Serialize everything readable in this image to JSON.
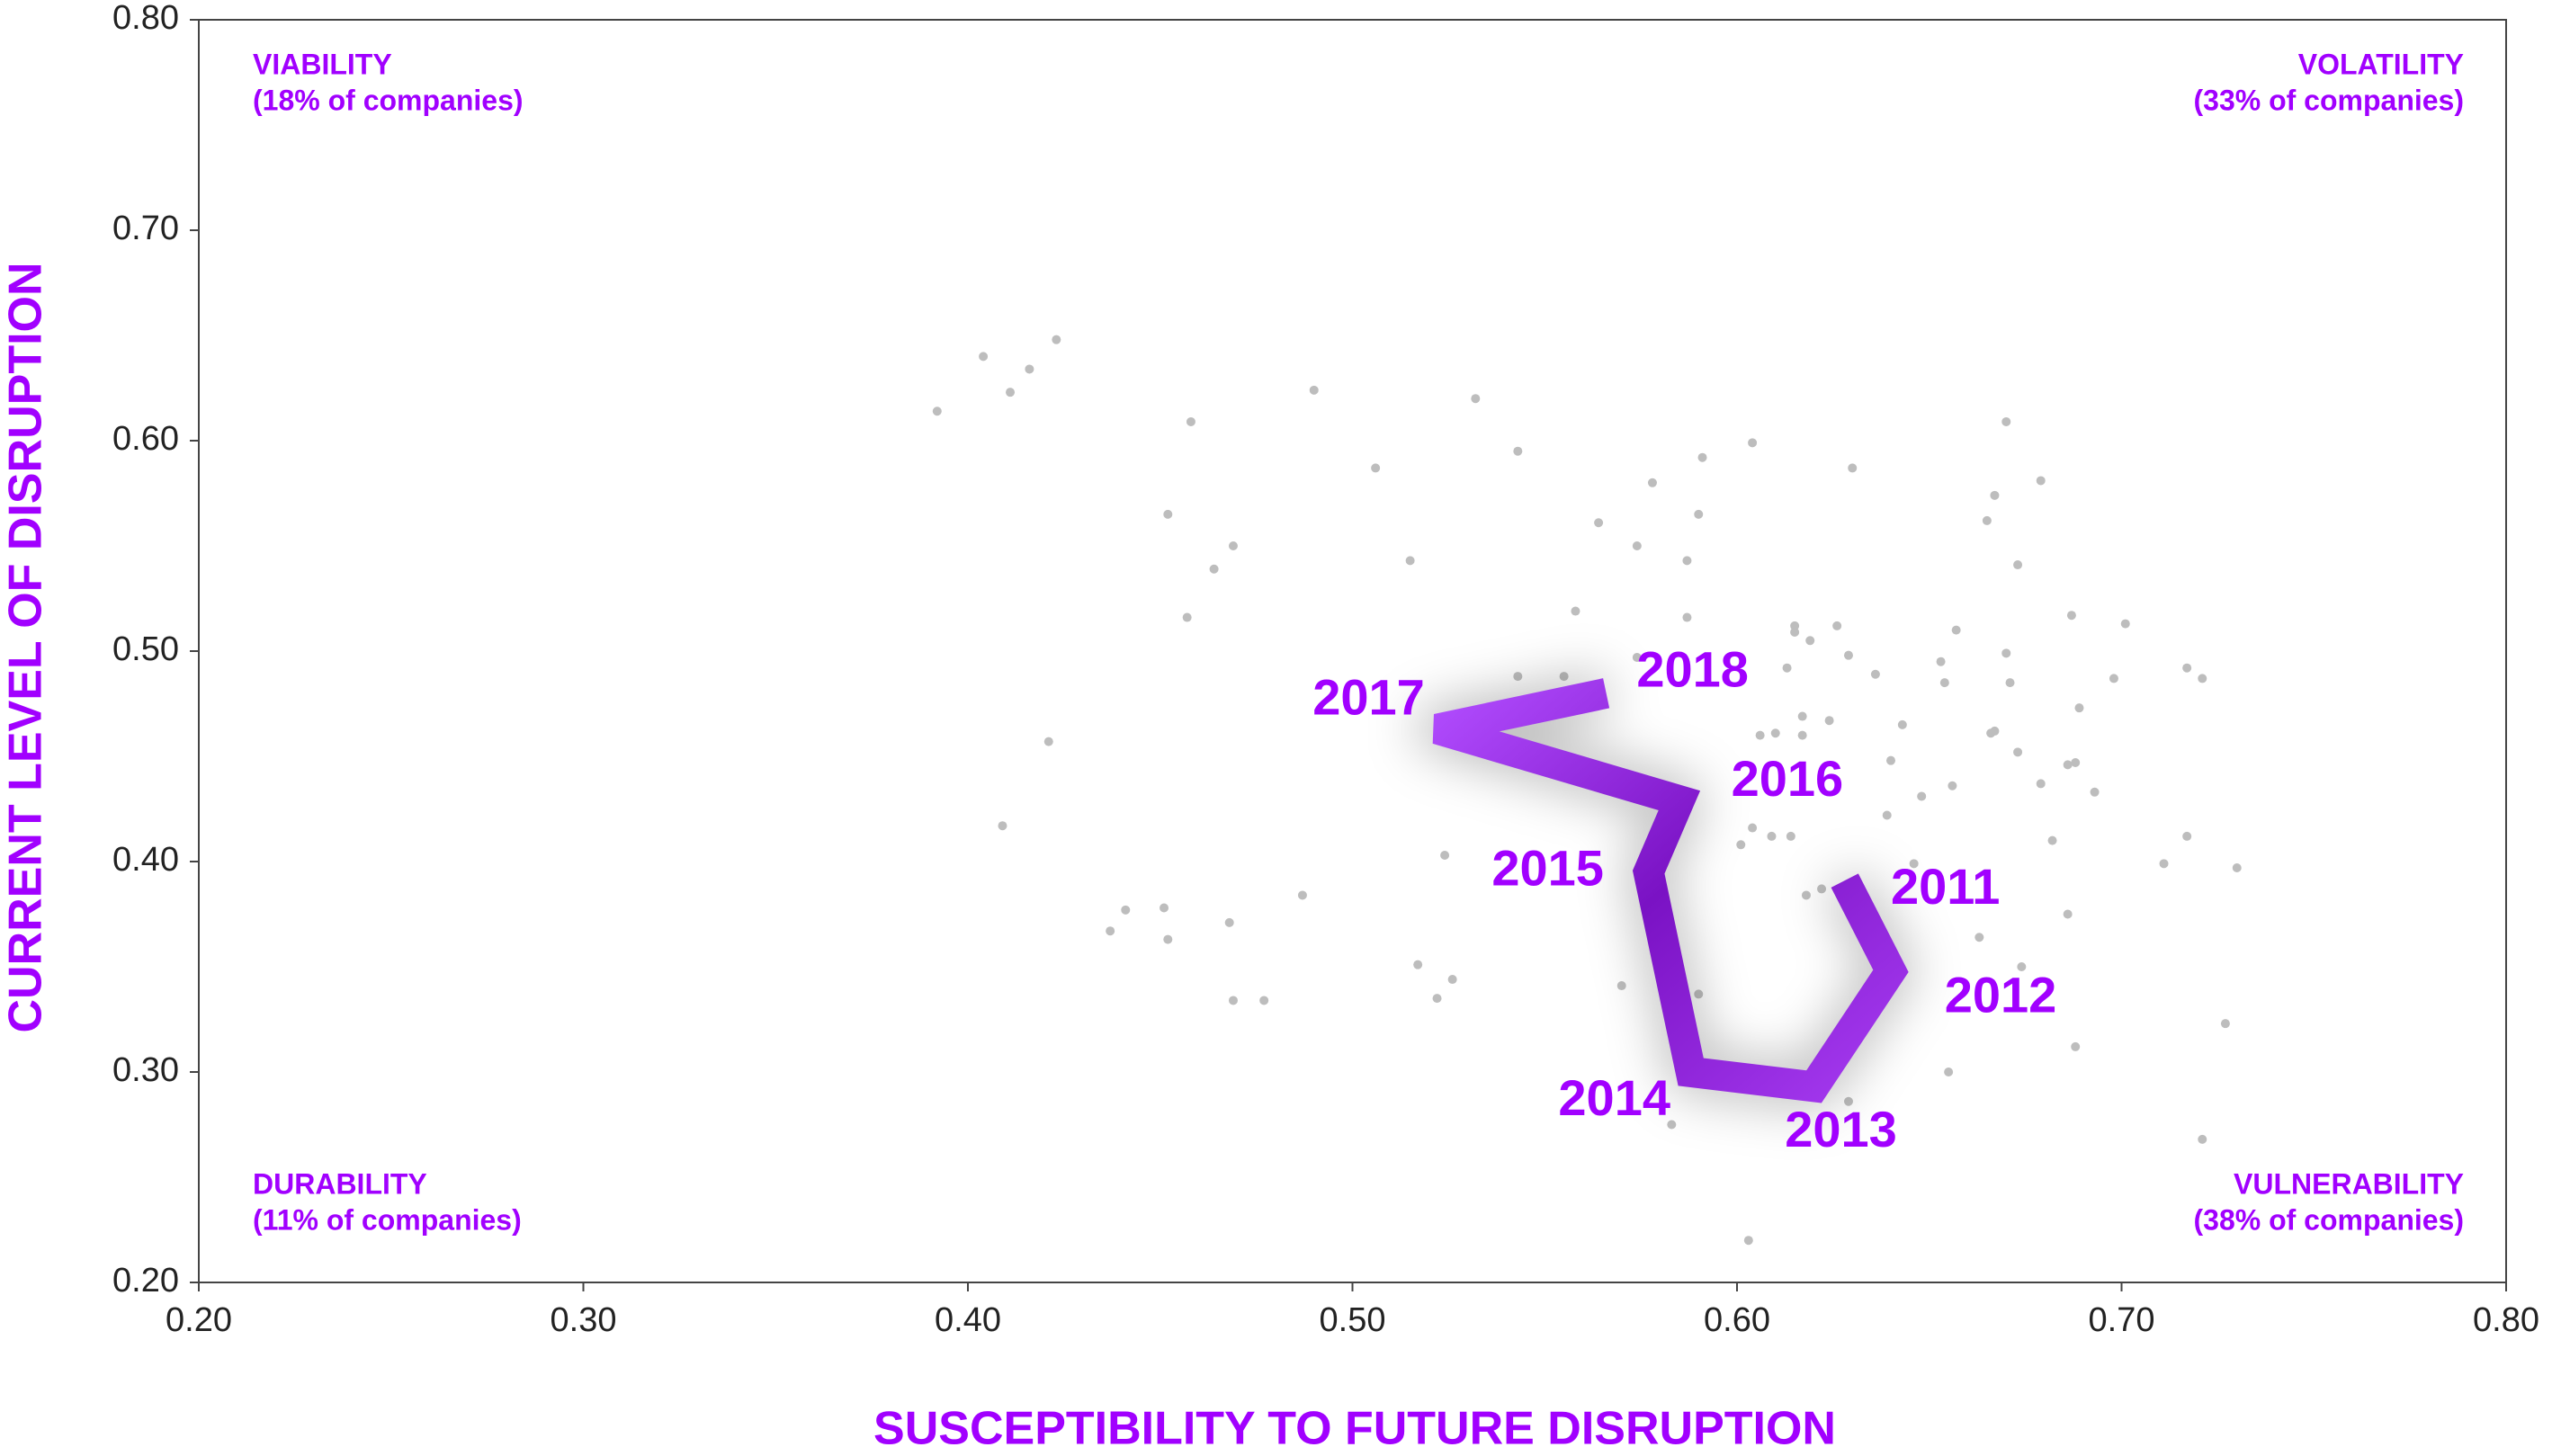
{
  "chart_data": {
    "type": "scatter",
    "x_label": "SUSCEPTIBILITY TO FUTURE DISRUPTION",
    "y_label": "CURRENT LEVEL OF DISRUPTION",
    "xlim": [
      0.2,
      0.8
    ],
    "ylim": [
      0.2,
      0.8
    ],
    "xticks": [
      {
        "value": 0.2,
        "label": "0.20"
      },
      {
        "value": 0.3,
        "label": "0.30"
      },
      {
        "value": 0.4,
        "label": "0.40"
      },
      {
        "value": 0.5,
        "label": "0.50"
      },
      {
        "value": 0.6,
        "label": "0.60"
      },
      {
        "value": 0.7,
        "label": "0.70"
      },
      {
        "value": 0.8,
        "label": "0.80"
      }
    ],
    "yticks": [
      {
        "value": 0.2,
        "label": "0.20"
      },
      {
        "value": 0.3,
        "label": "0.30"
      },
      {
        "value": 0.4,
        "label": "0.40"
      },
      {
        "value": 0.5,
        "label": "0.50"
      },
      {
        "value": 0.6,
        "label": "0.60"
      },
      {
        "value": 0.7,
        "label": "0.70"
      },
      {
        "value": 0.8,
        "label": "0.80"
      }
    ],
    "point_color": "#bdbdbd",
    "points": {
      "x": [
        0.392,
        0.404,
        0.411,
        0.416,
        0.423,
        0.49,
        0.532,
        0.458,
        0.506,
        0.543,
        0.604,
        0.591,
        0.67,
        0.63,
        0.578,
        0.679,
        0.667,
        0.452,
        0.59,
        0.665,
        0.469,
        0.464,
        0.515,
        0.564,
        0.574,
        0.587,
        0.673,
        0.558,
        0.457,
        0.587,
        0.615,
        0.626,
        0.687,
        0.701,
        0.657,
        0.615,
        0.619,
        0.653,
        0.67,
        0.574,
        0.629,
        0.613,
        0.636,
        0.717,
        0.721,
        0.698,
        0.654,
        0.671,
        0.555,
        0.543,
        0.689,
        0.617,
        0.624,
        0.61,
        0.667,
        0.666,
        0.606,
        0.617,
        0.643,
        0.421,
        0.673,
        0.688,
        0.686,
        0.64,
        0.679,
        0.693,
        0.656,
        0.648,
        0.639,
        0.409,
        0.604,
        0.609,
        0.614,
        0.601,
        0.682,
        0.717,
        0.524,
        0.711,
        0.73,
        0.646,
        0.487,
        0.622,
        0.618,
        0.441,
        0.451,
        0.686,
        0.437,
        0.468,
        0.663,
        0.452,
        0.635,
        0.517,
        0.674,
        0.526,
        0.57,
        0.59,
        0.469,
        0.477,
        0.522,
        0.688,
        0.727,
        0.655,
        0.583,
        0.629,
        0.721,
        0.603
      ],
      "y": [
        0.614,
        0.64,
        0.623,
        0.634,
        0.648,
        0.624,
        0.62,
        0.609,
        0.587,
        0.595,
        0.599,
        0.592,
        0.609,
        0.587,
        0.58,
        0.581,
        0.574,
        0.565,
        0.565,
        0.562,
        0.55,
        0.539,
        0.543,
        0.561,
        0.55,
        0.543,
        0.541,
        0.519,
        0.516,
        0.516,
        0.512,
        0.512,
        0.517,
        0.513,
        0.51,
        0.509,
        0.505,
        0.495,
        0.499,
        0.497,
        0.498,
        0.492,
        0.489,
        0.492,
        0.487,
        0.487,
        0.485,
        0.485,
        0.488,
        0.488,
        0.473,
        0.469,
        0.467,
        0.461,
        0.462,
        0.461,
        0.46,
        0.46,
        0.465,
        0.457,
        0.452,
        0.447,
        0.446,
        0.448,
        0.437,
        0.433,
        0.436,
        0.431,
        0.422,
        0.417,
        0.416,
        0.412,
        0.412,
        0.408,
        0.41,
        0.412,
        0.403,
        0.399,
        0.397,
        0.399,
        0.384,
        0.387,
        0.384,
        0.377,
        0.378,
        0.375,
        0.367,
        0.371,
        0.364,
        0.363,
        0.368,
        0.351,
        0.35,
        0.344,
        0.341,
        0.337,
        0.334,
        0.334,
        0.335,
        0.312,
        0.323,
        0.3,
        0.275,
        0.286,
        0.268,
        0.22
      ]
    },
    "trajectory": {
      "color": "#9a1ee6",
      "labels": [
        "2011",
        "2012",
        "2013",
        "2014",
        "2015",
        "2016",
        "2017",
        "2018"
      ],
      "x": [
        0.628,
        0.64,
        0.62,
        0.588,
        0.577,
        0.585,
        0.522,
        0.566
      ],
      "y": [
        0.391,
        0.348,
        0.293,
        0.3,
        0.395,
        0.429,
        0.463,
        0.48
      ]
    },
    "annotations": [
      {
        "title": "VIABILITY",
        "subtitle": "(18% of companies)"
      },
      {
        "title": "VOLATILITY",
        "subtitle": "(33% of companies)"
      },
      {
        "title": "DURABILITY",
        "subtitle": "(11% of companies)"
      },
      {
        "title": "VULNERABILITY",
        "subtitle": "(38% of companies)"
      }
    ]
  }
}
